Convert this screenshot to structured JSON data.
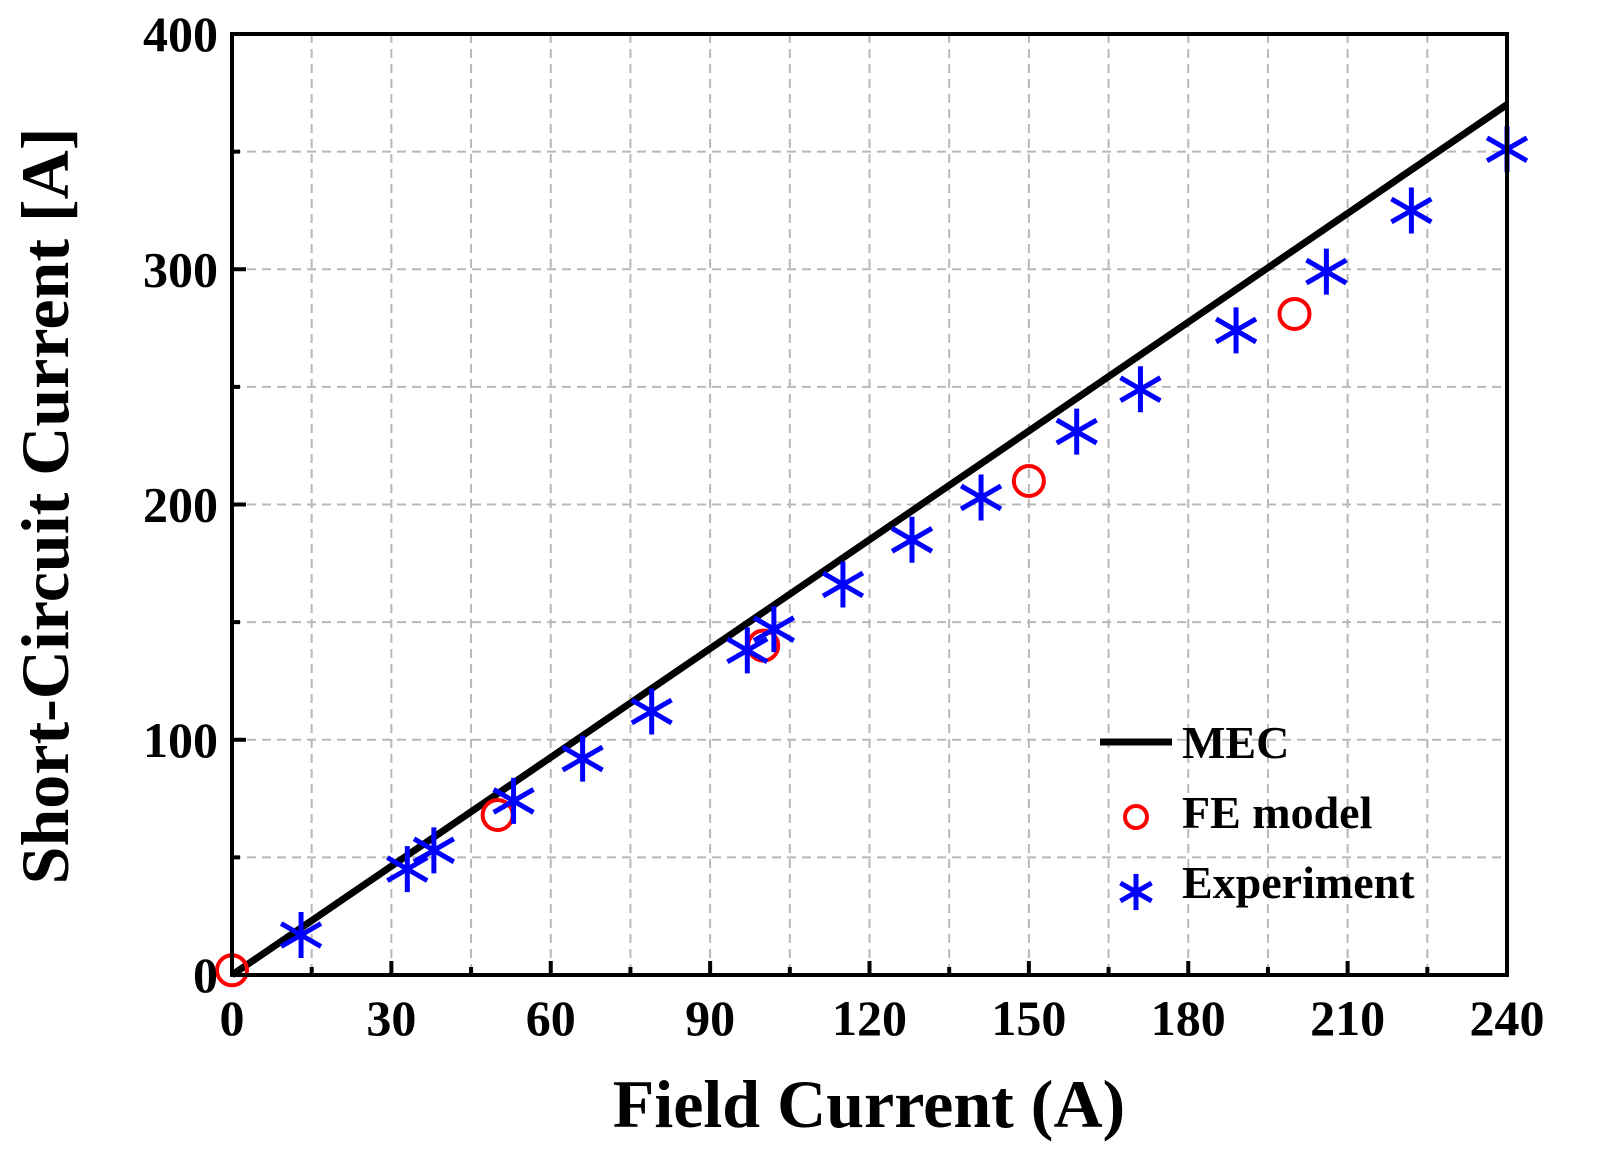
{
  "chart_data": {
    "type": "scatter",
    "title": "",
    "xlabel": "Field Current (A)",
    "ylabel": "Short-Circuit Current [A]",
    "xlim": [
      0,
      240
    ],
    "ylim": [
      0,
      400
    ],
    "xticks": [
      0,
      30,
      60,
      90,
      120,
      150,
      180,
      210,
      240
    ],
    "yticks": [
      0,
      100,
      200,
      300,
      400
    ],
    "grid": true,
    "legend_position": "bottom-right",
    "series": [
      {
        "name": "MEC",
        "kind": "line",
        "color": "#000000",
        "x": [
          0,
          240
        ],
        "y": [
          0,
          370
        ]
      },
      {
        "name": "FE model",
        "kind": "open-circle",
        "color": "#ff0000",
        "x": [
          0,
          50,
          100,
          150,
          200
        ],
        "y": [
          2,
          68,
          140,
          210,
          281
        ]
      },
      {
        "name": "Experiment",
        "kind": "asterisk",
        "color": "#0000ff",
        "x": [
          13,
          33,
          38,
          53,
          66,
          79,
          97,
          102,
          115,
          128,
          141,
          159,
          171,
          189,
          206,
          222,
          240
        ],
        "y": [
          17,
          45,
          53,
          74,
          92,
          112,
          138,
          147,
          166,
          185,
          203,
          231,
          249,
          274,
          299,
          325,
          351
        ]
      }
    ]
  }
}
